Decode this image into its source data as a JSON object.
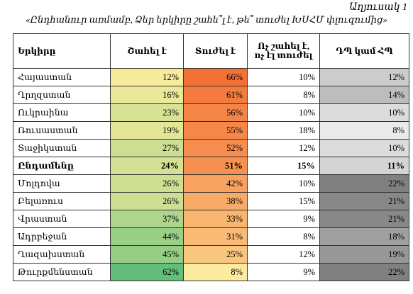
{
  "header": {
    "label": "Աղյուսակ 1",
    "title": "«Ընդհանուր առմամբ, Ձեր երկիրը շահե՞լ է, թե՞ տուժել ԽՍՀՄ փլուզումից»"
  },
  "table": {
    "columns": [
      "Երկիրը",
      "Շահել է",
      "Տուժել է",
      "Ոչ շահել է, ոչ էլ տուժել",
      "ԴՊ կամ ՀՊ"
    ],
    "rows": [
      [
        "Հայաստան",
        "12%",
        "66%",
        "10%",
        "12%"
      ],
      [
        "Ղրղզստան",
        "16%",
        "61%",
        "8%",
        "14%"
      ],
      [
        "Ուկրաինա",
        "23%",
        "56%",
        "10%",
        "10%"
      ],
      [
        "Ռուսաստան",
        "19%",
        "55%",
        "18%",
        "8%"
      ],
      [
        "Տաջիկստան",
        "27%",
        "52%",
        "12%",
        "10%"
      ],
      [
        "Ընդամենը",
        "24%",
        "51%",
        "15%",
        "11%"
      ],
      [
        "Մոլդովա",
        "26%",
        "42%",
        "10%",
        "22%"
      ],
      [
        "Բելառուս",
        "26%",
        "38%",
        "15%",
        "21%"
      ],
      [
        "Վրաստան",
        "37%",
        "33%",
        "9%",
        "21%"
      ],
      [
        "Ադրբեջան",
        "44%",
        "31%",
        "8%",
        "18%"
      ],
      [
        "Ղազախստան",
        "45%",
        "25%",
        "12%",
        "19%"
      ],
      [
        "Թուրքմենստան",
        "62%",
        "8%",
        "9%",
        "22%"
      ]
    ],
    "bold_row": 5
  }
}
